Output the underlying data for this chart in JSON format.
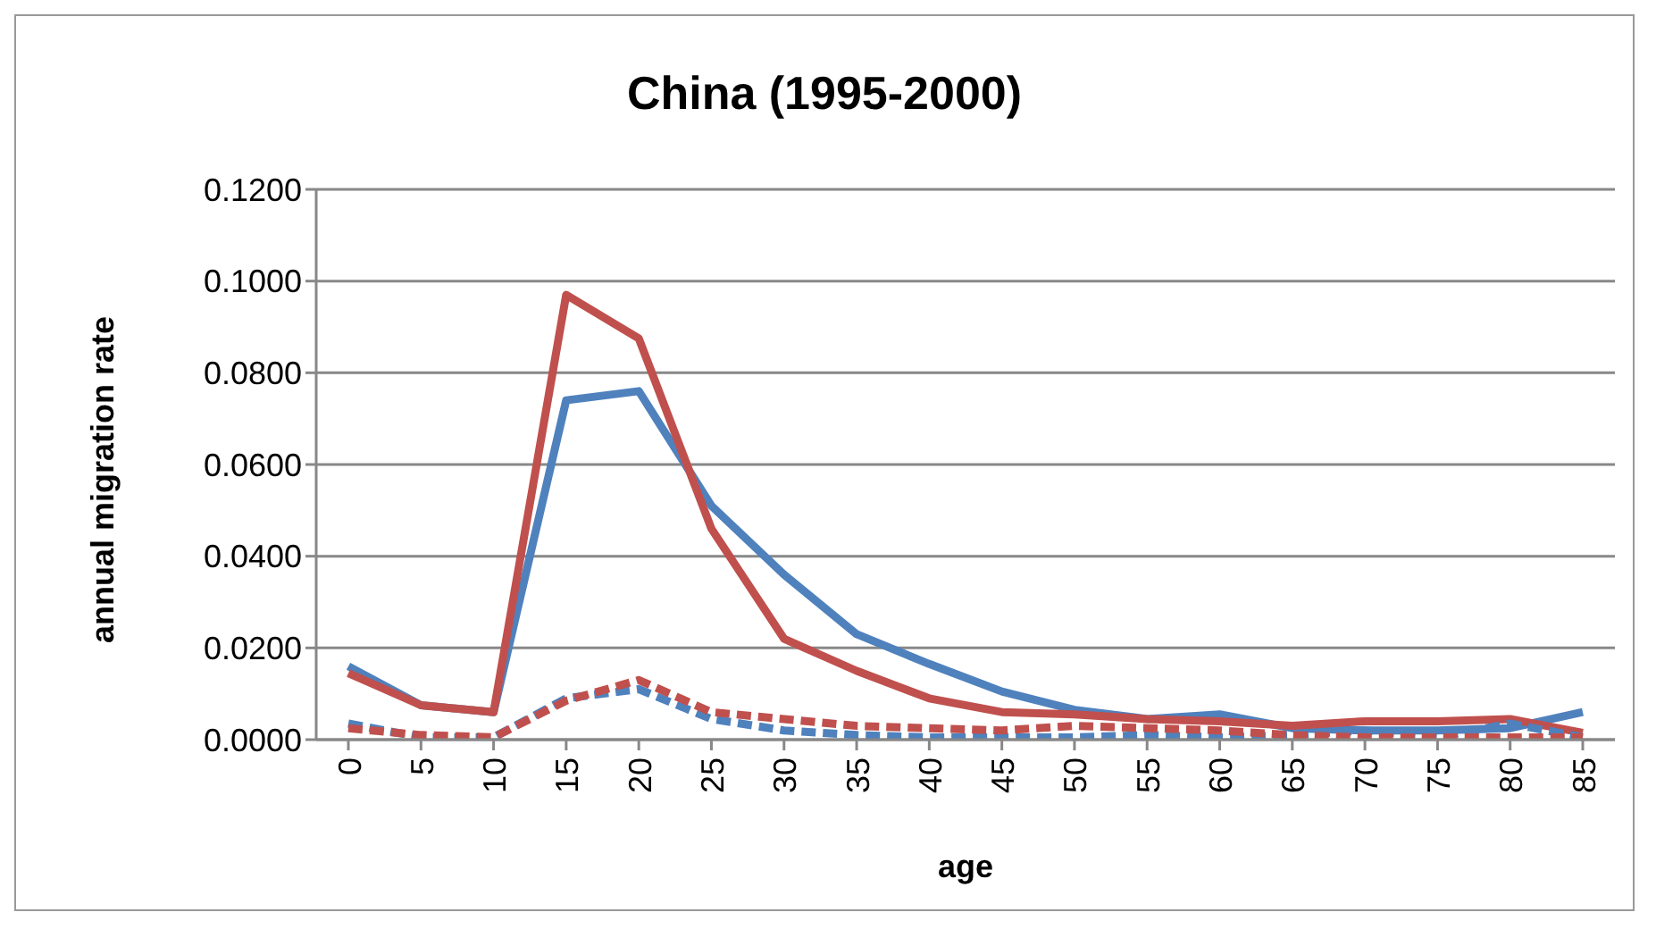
{
  "chart_data": {
    "type": "line",
    "title": "China (1995-2000)",
    "xlabel": "age",
    "ylabel": "annual migration rate",
    "categories": [
      "0",
      "5",
      "10",
      "15",
      "20",
      "25",
      "30",
      "35",
      "40",
      "45",
      "50",
      "55",
      "60",
      "65",
      "70",
      "75",
      "80",
      "85"
    ],
    "series": [
      {
        "color": "#4f81bd",
        "line_style": "solid",
        "values": [
          0.016,
          0.0075,
          0.006,
          0.074,
          0.076,
          0.051,
          0.036,
          0.023,
          0.0165,
          0.0105,
          0.0065,
          0.0045,
          0.0055,
          0.0025,
          0.002,
          0.002,
          0.0025,
          0.006
        ]
      },
      {
        "color": "#c0504d",
        "line_style": "solid",
        "values": [
          0.0145,
          0.0075,
          0.006,
          0.097,
          0.0875,
          0.046,
          0.022,
          0.015,
          0.009,
          0.006,
          0.0055,
          0.0045,
          0.004,
          0.003,
          0.004,
          0.004,
          0.0045,
          0.0015
        ]
      },
      {
        "color": "#4f81bd",
        "line_style": "dashed",
        "values": [
          0.0035,
          0.0005,
          0.0005,
          0.009,
          0.011,
          0.0045,
          0.002,
          0.001,
          0.0005,
          0.0005,
          0.0005,
          0.001,
          0.0005,
          0.001,
          0.002,
          0.0005,
          0.0035,
          0.0005
        ]
      },
      {
        "color": "#c0504d",
        "line_style": "dashed",
        "values": [
          0.0025,
          0.001,
          0.0005,
          0.0085,
          0.013,
          0.006,
          0.0045,
          0.003,
          0.0025,
          0.002,
          0.003,
          0.0025,
          0.002,
          0.001,
          0.0005,
          0.0005,
          0.0005,
          0.0005
        ]
      }
    ],
    "ylim": [
      0,
      0.12
    ],
    "yticks": [
      {
        "value": 0,
        "label": "0.0000"
      },
      {
        "value": 0.02,
        "label": "0.0200"
      },
      {
        "value": 0.04,
        "label": "0.0400"
      },
      {
        "value": 0.06,
        "label": "0.0600"
      },
      {
        "value": 0.08,
        "label": "0.0800"
      },
      {
        "value": 0.1,
        "label": "0.1000"
      },
      {
        "value": 0.12,
        "label": "0.1200"
      }
    ],
    "grid": "y",
    "legend": false,
    "marker": "none"
  }
}
